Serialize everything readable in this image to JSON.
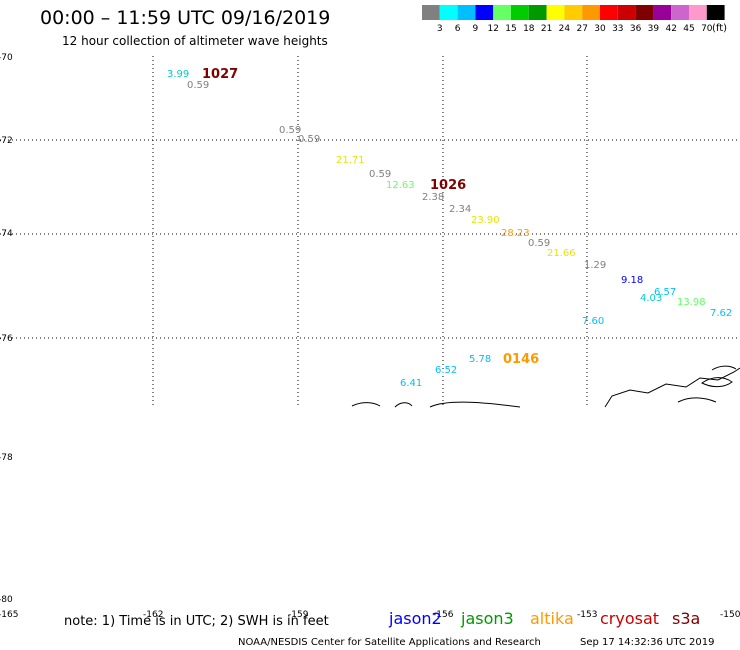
{
  "header": {
    "title": "00:00 – 11:59 UTC 09/16/2019",
    "subtitle": "12 hour collection of altimeter wave heights"
  },
  "colorbar": {
    "colors": [
      "#808080",
      "#00ffff",
      "#00bfff",
      "#0000ff",
      "#66ff66",
      "#00cc00",
      "#009900",
      "#ffff00",
      "#ffcc00",
      "#ff9900",
      "#ff0000",
      "#cc0000",
      "#800000",
      "#990099",
      "#cc66cc",
      "#ff99cc",
      "#000000"
    ],
    "labels": [
      "3",
      "6",
      "9",
      "12",
      "15",
      "18",
      "21",
      "24",
      "27",
      "30",
      "33",
      "36",
      "39",
      "42",
      "45",
      "70"
    ],
    "unit": "(ft)"
  },
  "axes": {
    "y_labels": [
      "-70",
      "-72",
      "-74",
      "-76",
      "-78",
      "-80"
    ],
    "x_labels": [
      "-165",
      "-162",
      "-159",
      "-156",
      "-153",
      "-150"
    ]
  },
  "observations": [
    {
      "text": "3.99",
      "color": "#00cccc"
    },
    {
      "text": "0.59",
      "color": "#808080"
    },
    {
      "text": "0.59",
      "color": "#808080"
    },
    {
      "text": "0.59",
      "color": "#808080"
    },
    {
      "text": "21.71",
      "color": "#e6e600"
    },
    {
      "text": "0.59",
      "color": "#808080"
    },
    {
      "text": "12.63",
      "color": "#66ff66"
    },
    {
      "text": "2.38",
      "color": "#808080"
    },
    {
      "text": "2.34",
      "color": "#808080"
    },
    {
      "text": "23.90",
      "color": "#e6e600"
    },
    {
      "text": "28.23",
      "color": "#ff9900"
    },
    {
      "text": "0.59",
      "color": "#808080"
    },
    {
      "text": "21.66",
      "color": "#e6e600"
    },
    {
      "text": "1.29",
      "color": "#808080"
    },
    {
      "text": "9.18",
      "color": "#0000ff"
    },
    {
      "text": "6.57",
      "color": "#00bfff"
    },
    {
      "text": "4.03",
      "color": "#00cccc"
    },
    {
      "text": "13.98",
      "color": "#66ff66"
    },
    {
      "text": "7.62",
      "color": "#00bfff"
    },
    {
      "text": "7.60",
      "color": "#00bfff"
    },
    {
      "text": "5.78",
      "color": "#00bfff"
    },
    {
      "text": "6.52",
      "color": "#00bfff"
    },
    {
      "text": "6.41",
      "color": "#00bfff"
    }
  ],
  "time_labels": [
    {
      "text": "1027",
      "color": "#800000"
    },
    {
      "text": "1026",
      "color": "#800000"
    },
    {
      "text": "0146",
      "color": "#ff9900"
    }
  ],
  "footer": {
    "note": "note: 1) Time is in UTC; 2) SWH is in feet",
    "satellites": [
      {
        "name": "jason2",
        "color": "#0000ff"
      },
      {
        "name": "jason3",
        "color": "#009900"
      },
      {
        "name": "altika",
        "color": "#ff9900"
      },
      {
        "name": "cryosat",
        "color": "#cc0000"
      },
      {
        "name": "s3a",
        "color": "#800000"
      }
    ],
    "credit": "NOAA/NESDIS Center for Satellite Applications and Research",
    "timestamp": "Sep 17 14:32:36 UTC 2019"
  }
}
